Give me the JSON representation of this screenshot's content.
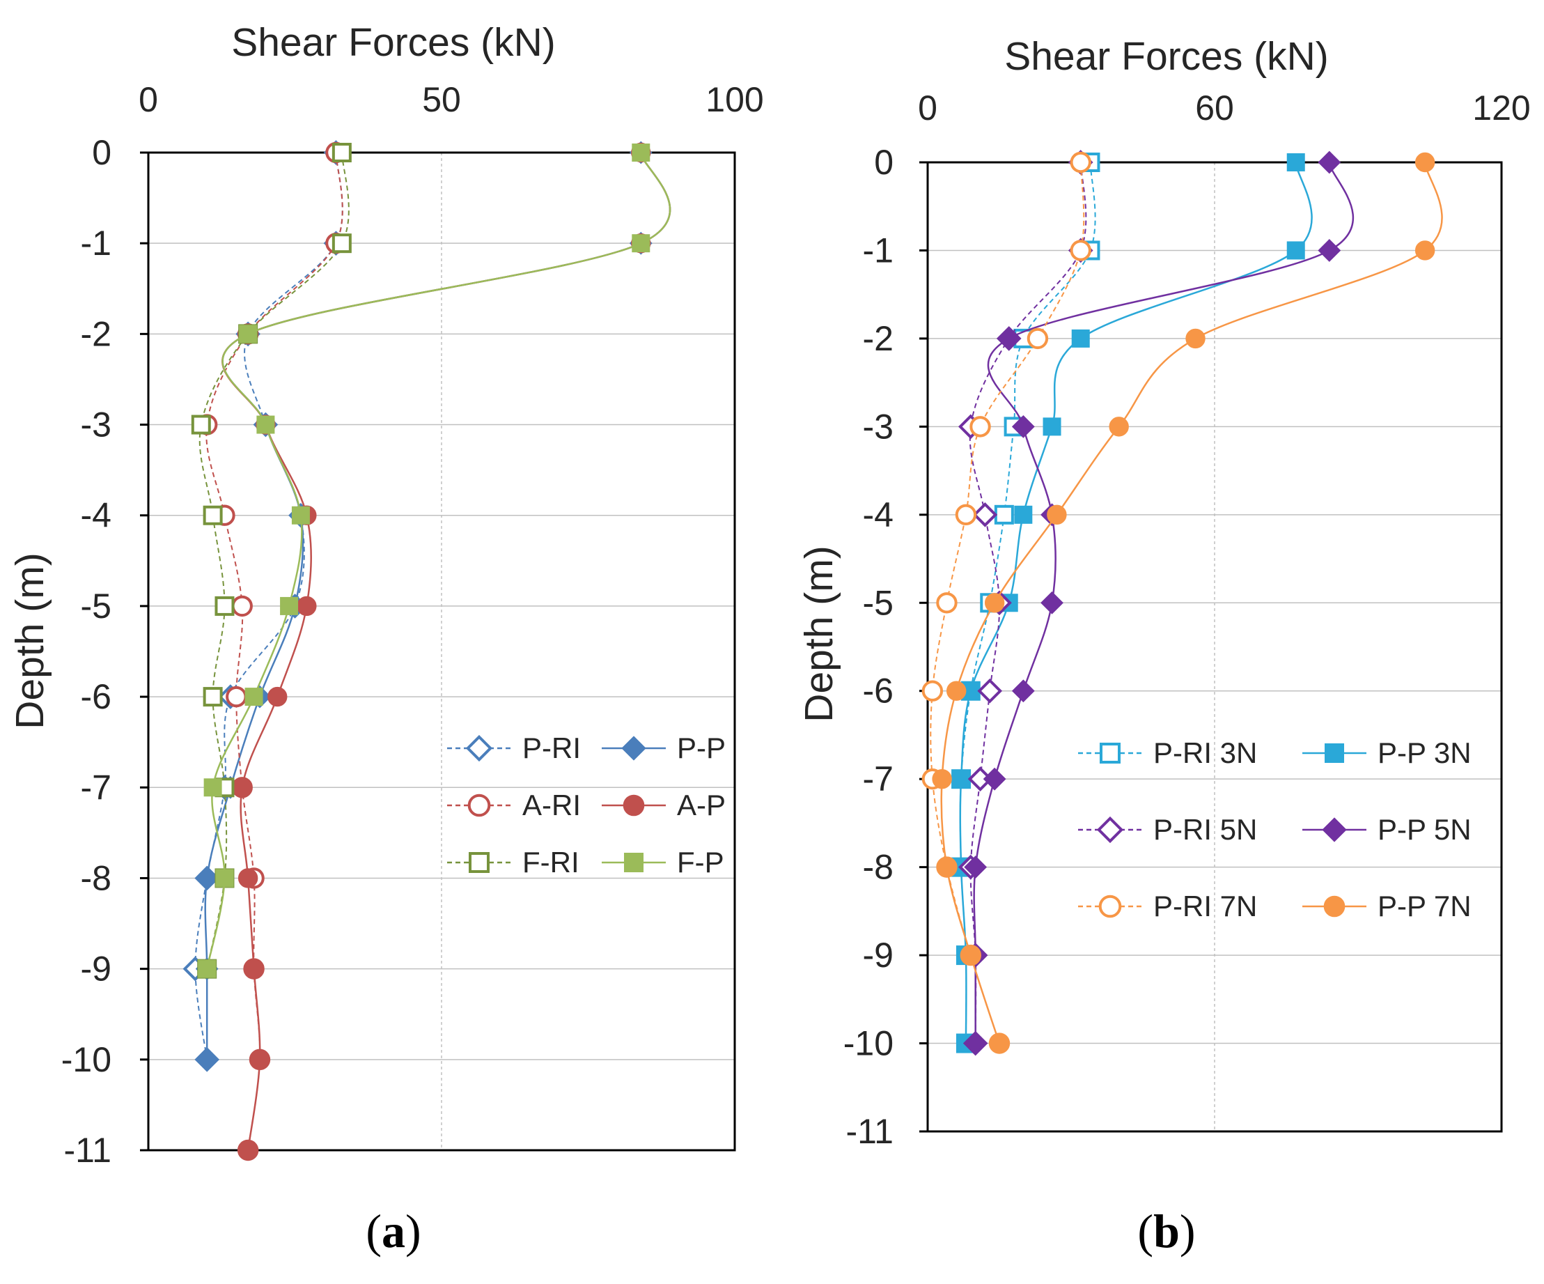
{
  "chart_data": [
    {
      "type": "line",
      "panel": "a",
      "caption_open": "(",
      "caption_letter": "a",
      "caption_close": ")",
      "title": "Shear Forces (kN)",
      "xlabel": "Shear Forces (kN)",
      "ylabel": "Depth (m)",
      "xlim": [
        0,
        100
      ],
      "ylim": [
        -11,
        0
      ],
      "xticks": [
        0,
        50,
        100
      ],
      "xtick_labels": [
        "0",
        "50",
        "100"
      ],
      "yticks": [
        0,
        -1,
        -2,
        -3,
        -4,
        -5,
        -6,
        -7,
        -8,
        -9,
        -10,
        -11
      ],
      "ytick_labels": [
        "0",
        "-1",
        "-2",
        "-3",
        "-4",
        "-5",
        "-6",
        "-7",
        "-8",
        "-9",
        "-10",
        "-11"
      ],
      "grid": true,
      "legend_position": "lower-right",
      "series": [
        {
          "name": "P-RI",
          "color": "#4a7ebb",
          "marker": "diamond",
          "filled": false,
          "dashed": true,
          "x": [
            32,
            32,
            17,
            20,
            26,
            25,
            14,
            13,
            10,
            8,
            10
          ],
          "y": [
            0,
            -1,
            -2,
            -3,
            -4,
            -5,
            -6,
            -7,
            -8,
            -9,
            -10
          ]
        },
        {
          "name": "P-P",
          "color": "#4a7ebb",
          "marker": "diamond",
          "filled": true,
          "dashed": false,
          "x": [
            84,
            84,
            17,
            20,
            26,
            25,
            19,
            14,
            10,
            10,
            10
          ],
          "y": [
            0,
            -1,
            -2,
            -3,
            -4,
            -5,
            -6,
            -7,
            -8,
            -9,
            -10
          ]
        },
        {
          "name": "A-RI",
          "color": "#c0504d",
          "marker": "circle",
          "filled": false,
          "dashed": true,
          "x": [
            32,
            32,
            17,
            10,
            13,
            16,
            15,
            16,
            18,
            18,
            19,
            17
          ],
          "y": [
            0,
            -1,
            -2,
            -3,
            -4,
            -5,
            -6,
            -7,
            -8,
            -9,
            -10,
            -11
          ]
        },
        {
          "name": "A-P",
          "color": "#c0504d",
          "marker": "circle",
          "filled": true,
          "dashed": false,
          "x": [
            84,
            84,
            17,
            20,
            27,
            27,
            22,
            16,
            17,
            18,
            19,
            17
          ],
          "y": [
            0,
            -1,
            -2,
            -3,
            -4,
            -5,
            -6,
            -7,
            -8,
            -9,
            -10,
            -11
          ]
        },
        {
          "name": "F-RI",
          "color": "#77933c",
          "marker": "square",
          "filled": false,
          "dashed": true,
          "x": [
            33,
            33,
            17,
            9,
            11,
            13,
            11,
            13,
            13,
            10
          ],
          "y": [
            0,
            -1,
            -2,
            -3,
            -4,
            -5,
            -6,
            -7,
            -8,
            -9
          ]
        },
        {
          "name": "F-P",
          "color": "#9bbb59",
          "marker": "square",
          "filled": true,
          "dashed": false,
          "x": [
            84,
            84,
            17,
            20,
            26,
            24,
            18,
            11,
            13,
            10
          ],
          "y": [
            0,
            -1,
            -2,
            -3,
            -4,
            -5,
            -6,
            -7,
            -8,
            -9
          ]
        }
      ]
    },
    {
      "type": "line",
      "panel": "b",
      "caption_open": "(",
      "caption_letter": "b",
      "caption_close": ")",
      "title": "Shear Forces (kN)",
      "xlabel": "Shear Forces (kN)",
      "ylabel": "Depth (m)",
      "xlim": [
        0,
        120
      ],
      "ylim": [
        -11,
        0
      ],
      "xticks": [
        0,
        60,
        120
      ],
      "xtick_labels": [
        "0",
        "60",
        "120"
      ],
      "yticks": [
        0,
        -1,
        -2,
        -3,
        -4,
        -5,
        -6,
        -7,
        -8,
        -9,
        -10,
        -11
      ],
      "ytick_labels": [
        "0",
        "-1",
        "-2",
        "-3",
        "-4",
        "-5",
        "-6",
        "-7",
        "-8",
        "-9",
        "-10",
        "-11"
      ],
      "grid": true,
      "legend_position": "lower-right",
      "series": [
        {
          "name": "P-RI 3N",
          "color": "#2aa8d8",
          "marker": "square",
          "filled": false,
          "dashed": true,
          "x": [
            34,
            34,
            20,
            18,
            16,
            13,
            9,
            7,
            7,
            8,
            8
          ],
          "y": [
            0,
            -1,
            -2,
            -3,
            -4,
            -5,
            -6,
            -7,
            -8,
            -9,
            -10
          ]
        },
        {
          "name": "P-P 3N",
          "color": "#2aa8d8",
          "marker": "square",
          "filled": true,
          "dashed": false,
          "x": [
            77,
            77,
            32,
            26,
            20,
            17,
            9,
            7,
            7,
            8,
            8
          ],
          "y": [
            0,
            -1,
            -2,
            -3,
            -4,
            -5,
            -6,
            -7,
            -8,
            -9,
            -10
          ]
        },
        {
          "name": "P-RI 5N",
          "color": "#7030a0",
          "marker": "diamond",
          "filled": false,
          "dashed": true,
          "x": [
            32,
            32,
            17,
            9,
            12,
            15,
            13,
            11,
            9,
            10,
            10
          ],
          "y": [
            0,
            -1,
            -2,
            -3,
            -4,
            -5,
            -6,
            -7,
            -8,
            -9,
            -10
          ]
        },
        {
          "name": "P-P 5N",
          "color": "#7030a0",
          "marker": "diamond",
          "filled": true,
          "dashed": false,
          "x": [
            84,
            84,
            17,
            20,
            26,
            26,
            20,
            14,
            10,
            10,
            10
          ],
          "y": [
            0,
            -1,
            -2,
            -3,
            -4,
            -5,
            -6,
            -7,
            -8,
            -9,
            -10
          ]
        },
        {
          "name": "P-RI 7N",
          "color": "#f79646",
          "marker": "circle",
          "filled": false,
          "dashed": true,
          "x": [
            32,
            32,
            23,
            11,
            8,
            4,
            1,
            1,
            4,
            9,
            15
          ],
          "y": [
            0,
            -1,
            -2,
            -3,
            -4,
            -5,
            -6,
            -7,
            -8,
            -9,
            -10
          ]
        },
        {
          "name": "P-P 7N",
          "color": "#f79646",
          "marker": "circle",
          "filled": true,
          "dashed": false,
          "x": [
            104,
            104,
            56,
            40,
            27,
            14,
            6,
            3,
            4,
            9,
            15
          ],
          "y": [
            0,
            -1,
            -2,
            -3,
            -4,
            -5,
            -6,
            -7,
            -8,
            -9,
            -10
          ]
        }
      ]
    }
  ]
}
